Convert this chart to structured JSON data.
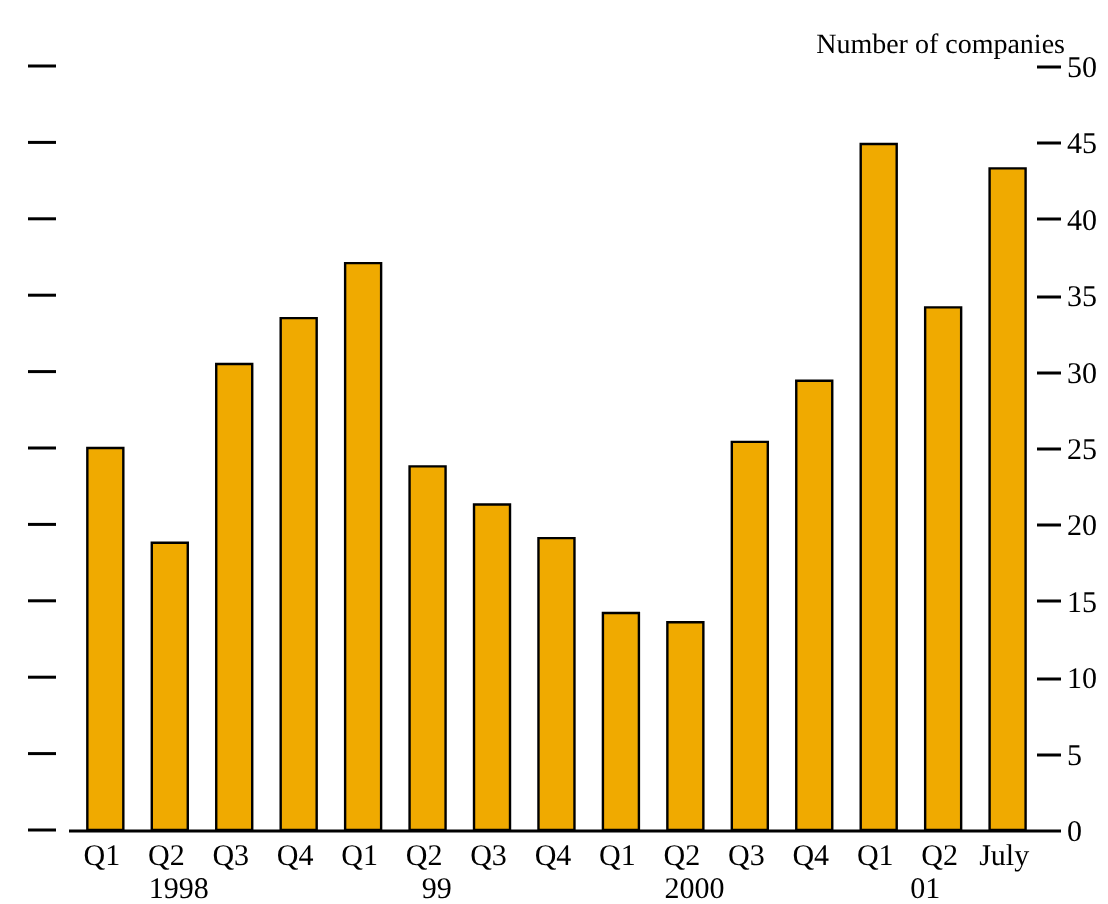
{
  "chart_data": {
    "type": "bar",
    "ylabel": "Number of companies",
    "categories": [
      "Q1",
      "Q2",
      "Q3",
      "Q4",
      "Q1",
      "Q2",
      "Q3",
      "Q4",
      "Q1",
      "Q2",
      "Q3",
      "Q4",
      "Q1",
      "Q2",
      "July"
    ],
    "values": [
      25,
      18.8,
      30.5,
      33.5,
      37.1,
      23.8,
      21.3,
      19.1,
      14.2,
      13.6,
      25.4,
      29.4,
      44.9,
      34.2,
      43.3
    ],
    "color": "#f0aa00",
    "ylim": [
      0,
      50
    ],
    "yticks": [
      0,
      5,
      10,
      15,
      20,
      25,
      30,
      35,
      40,
      45,
      50
    ],
    "grid": false,
    "annotations": [
      "1998",
      "99",
      "2000",
      "01"
    ]
  }
}
